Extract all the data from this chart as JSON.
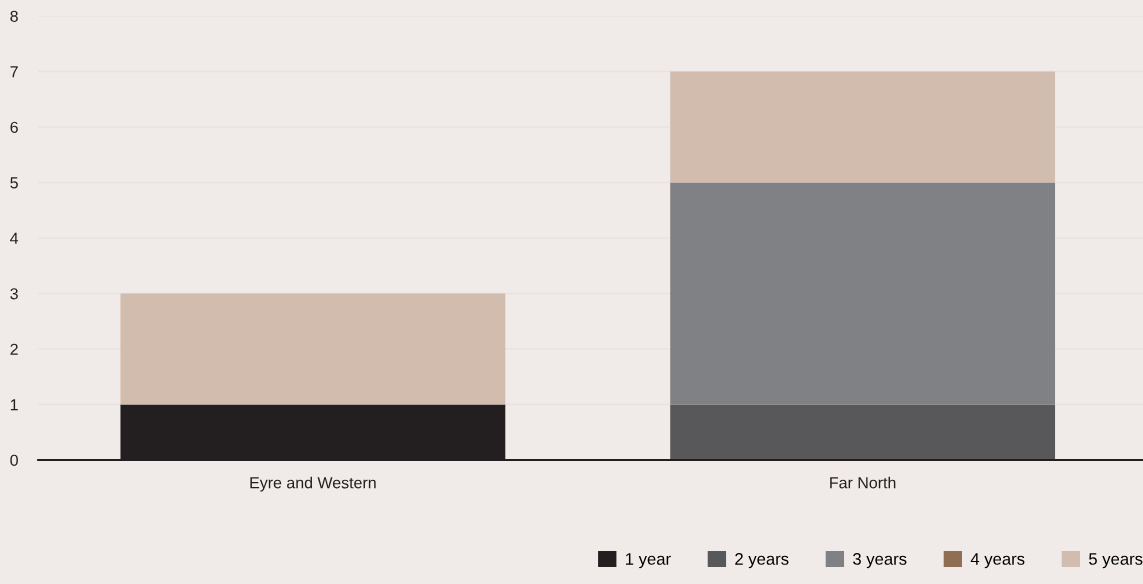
{
  "chart_data": {
    "type": "bar",
    "stacked": true,
    "categories": [
      "Eyre and Western",
      "Far North"
    ],
    "series": [
      {
        "name": "1 year",
        "color": "#231f20",
        "values": [
          1,
          0
        ]
      },
      {
        "name": "2 years",
        "color": "#58585a",
        "values": [
          0,
          1
        ]
      },
      {
        "name": "3 years",
        "color": "#808184",
        "values": [
          0,
          4
        ]
      },
      {
        "name": "4 years",
        "color": "#8f6e52",
        "values": [
          0,
          0
        ]
      },
      {
        "name": "5 years",
        "color": "#d1bcae",
        "values": [
          2,
          2
        ]
      }
    ],
    "ylim": [
      0,
      8
    ],
    "yticks": [
      0,
      1,
      2,
      3,
      4,
      5,
      6,
      7,
      8
    ],
    "grid": "y",
    "legend": "bottom right"
  }
}
